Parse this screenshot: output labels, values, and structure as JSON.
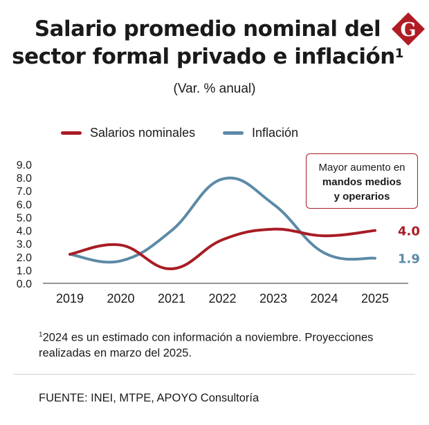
{
  "header": {
    "title_line1": "Salario promedio nominal del",
    "title_line2": "sector formal privado e inflación",
    "title_sup": "1",
    "subtitle": "(Var. % anual)"
  },
  "logo": {
    "letter": "G",
    "color": "#b01c24"
  },
  "legend": {
    "items": [
      {
        "label": "Salarios nominales",
        "color": "#a81c24"
      },
      {
        "label": "Inflación",
        "color": "#5b8aa6"
      }
    ]
  },
  "callout": {
    "line1": "Mayor aumento en",
    "line2": "mandos medios",
    "line3": "y operarios"
  },
  "chart_data": {
    "type": "line",
    "title": "Salario promedio nominal del sector formal privado e inflación",
    "ylabel": "Var. % anual",
    "xlabel": "",
    "categories": [
      "2019",
      "2020",
      "2021",
      "2022",
      "2023",
      "2024",
      "2025"
    ],
    "ylim": [
      0,
      9
    ],
    "yticks": [
      "9.0",
      "8.0",
      "7.0",
      "6.0",
      "5.0",
      "4.0",
      "3.0",
      "2.0",
      "1.0",
      "0.0"
    ],
    "series": [
      {
        "name": "Salarios nominales",
        "color": "#a81c24",
        "values": [
          2.2,
          2.9,
          1.1,
          3.3,
          4.1,
          3.6,
          4.0
        ],
        "end_label": "4.0"
      },
      {
        "name": "Inflación",
        "color": "#5b8aa6",
        "values": [
          2.2,
          1.7,
          4.0,
          7.9,
          6.0,
          2.3,
          1.9
        ],
        "end_label": "1.9"
      }
    ]
  },
  "footnote": {
    "sup": "1",
    "text": "2024 es un estimado con información a noviembre. Proyecciones realizadas en marzo del 2025."
  },
  "source": "FUENTE: INEI, MTPE, APOYO Consultoría"
}
